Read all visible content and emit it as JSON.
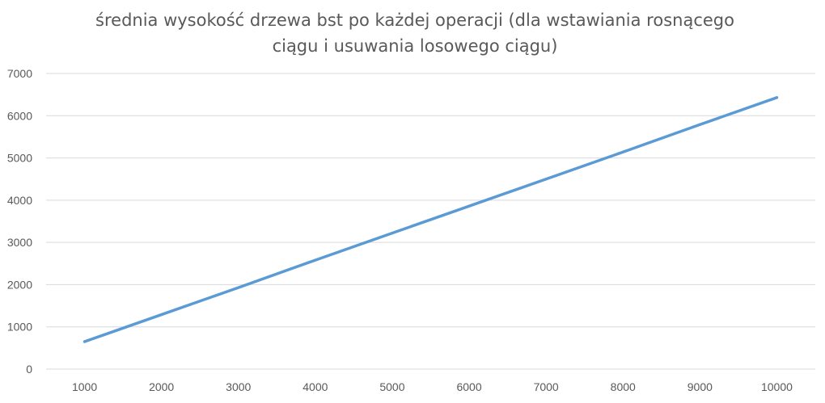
{
  "chart_data": {
    "type": "line",
    "title_lines": [
      "średnia wysokość drzewa bst po każdej operacji (dla wstawiania rosnącego",
      "ciągu i usuwania losowego ciągu)"
    ],
    "xlabel": "",
    "ylabel": "",
    "x": [
      1000,
      2000,
      3000,
      4000,
      5000,
      6000,
      7000,
      8000,
      9000,
      10000
    ],
    "x_tick_labels": [
      "1000",
      "2000",
      "3000",
      "4000",
      "5000",
      "6000",
      "7000",
      "8000",
      "9000",
      "10000"
    ],
    "y_tick_labels": [
      "0",
      "1000",
      "2000",
      "3000",
      "4000",
      "5000",
      "6000",
      "7000"
    ],
    "ylim": [
      0,
      7000
    ],
    "grid": true,
    "legend": "none",
    "series": [
      {
        "values": [
          650,
          1290,
          1930,
          2580,
          3220,
          3860,
          4500,
          5140,
          5790,
          6430
        ],
        "color": "#5b9bd5"
      }
    ]
  }
}
